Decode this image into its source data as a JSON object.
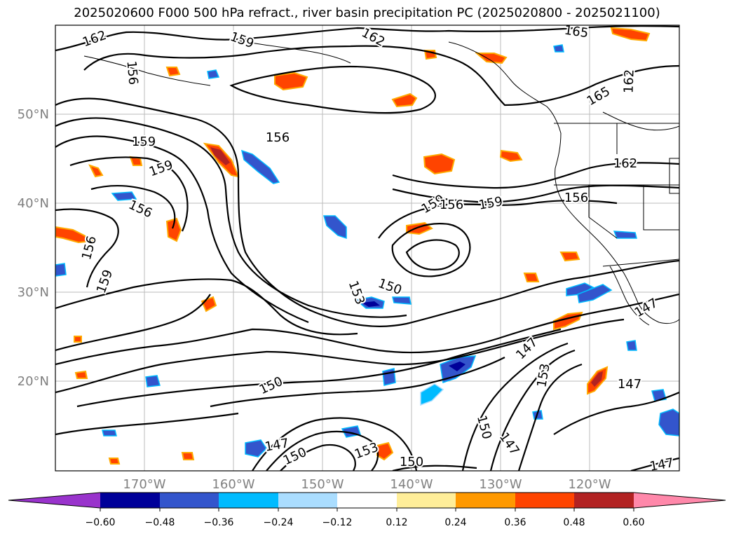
{
  "title": "2025020600 F000 500 hPa refract., river basin precipitation PC (2025020800 - 2025021100)",
  "map": {
    "lat_labels": [
      "50°N",
      "40°N",
      "30°N",
      "20°N"
    ],
    "lon_labels": [
      "170°W",
      "160°W",
      "150°W",
      "140°W",
      "130°W",
      "120°W"
    ],
    "axis_label_color": "#808080",
    "contour_labels": [
      "162",
      "159",
      "162",
      "165",
      "156",
      "162",
      "165",
      "156",
      "159",
      "159",
      "162",
      "156",
      "159",
      "156",
      "159",
      "156",
      "156",
      "159",
      "153",
      "150",
      "147",
      "153",
      "147",
      "150",
      "147",
      "147",
      "150",
      "153",
      "150",
      "150",
      "147",
      "147"
    ]
  },
  "colorbar": {
    "tick_labels": [
      "−0.60",
      "−0.48",
      "−0.36",
      "−0.24",
      "−0.12",
      "0.12",
      "0.24",
      "0.36",
      "0.48",
      "0.60"
    ],
    "colors": [
      "#9933cc",
      "#000099",
      "#3355cc",
      "#00bbff",
      "#aaddff",
      "#ffffff",
      "#ffee99",
      "#ff9900",
      "#ff4400",
      "#b22222",
      "#ff88aa"
    ]
  }
}
